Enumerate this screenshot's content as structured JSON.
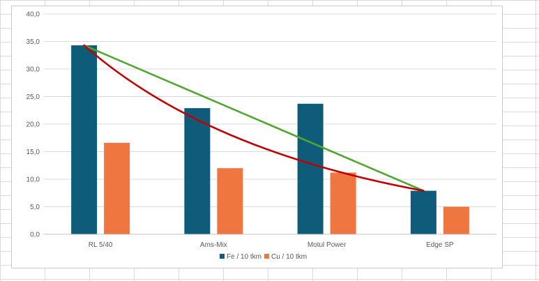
{
  "chart_data": {
    "type": "bar",
    "categories": [
      "RL 5/40",
      "Ams-Mix",
      "Motul Power",
      "Edge SP"
    ],
    "series": [
      {
        "name": "Fe / 10 tkm",
        "values": [
          34.3,
          22.9,
          23.7,
          7.9
        ]
      },
      {
        "name": "Cu / 10 tkm",
        "values": [
          16.6,
          12.0,
          11.2,
          5.0
        ]
      }
    ],
    "ylim": [
      0,
      40
    ],
    "yticks": [
      "0,0",
      "5,0",
      "10,0",
      "15,0",
      "20,0",
      "25,0",
      "30,0",
      "35,0",
      "40,0"
    ],
    "grid": true,
    "legend_position": "bottom",
    "trendlines": [
      {
        "type": "linear",
        "from": 34.3,
        "to": 7.9,
        "color": "#4ea72e"
      },
      {
        "type": "curved",
        "from": 34.3,
        "to": 7.9,
        "color": "#c00000"
      }
    ],
    "colors": {
      "fe": "#0e5c7a",
      "cu": "#f07640"
    }
  }
}
